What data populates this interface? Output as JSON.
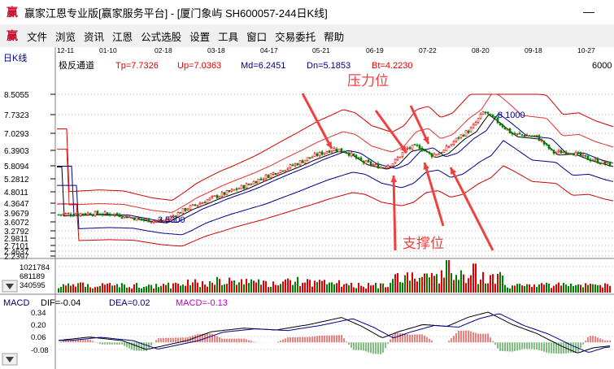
{
  "window": {
    "title": "赢家江恩专业版[赢家服务平台] - [厦门象屿  SH600057-244日K线]",
    "icon": "yingjia-logo-icon"
  },
  "menu": {
    "items": [
      "文件",
      "浏览",
      "资讯",
      "江恩",
      "公式选股",
      "设置",
      "工具",
      "窗口",
      "交易委托",
      "帮助"
    ]
  },
  "chart": {
    "period_label": "日K线",
    "dates": [
      "12-11",
      "01-10",
      "02-18",
      "03-18",
      "04-17",
      "05-21",
      "06-19",
      "07-22",
      "08-20",
      "09-18",
      "10-27"
    ],
    "indicator": {
      "name": "极反通道",
      "values": [
        "Tp=7.7326",
        "Up=7.0363",
        "Md=6.2451",
        "Dn=5.1853",
        "Bt=4.2230"
      ]
    },
    "right_edge_label": "6000",
    "price_ticks": [
      "8.5055",
      "7.7323",
      "7.0293",
      "6.3903",
      "5.8094",
      "5.2812",
      "4.8011",
      "4.3647",
      "3.9679",
      "3.6072",
      "3.2792",
      "2.9811",
      "2.7101",
      "2.4637",
      "2.2397"
    ],
    "high_label": "8.1000",
    "low_label": "3.5300",
    "annotation_resistance": "压力位",
    "annotation_support": "支撑位",
    "volume_ticks": [
      "1021784",
      "681189",
      "340595"
    ],
    "macd": {
      "name": "MACD",
      "dif": "DIF=-0.04",
      "dea": "DEA=0.02",
      "macd": "MACD=-0.13",
      "ticks": [
        "0.34",
        "0.20",
        "0.06",
        "-0.08"
      ]
    },
    "colors": {
      "up": "#e00000",
      "down": "#008000",
      "channel": "#d00000",
      "mid": "#00008b",
      "ma": "#000000",
      "arrow": "#f04040",
      "macd_label": "#c000c0"
    }
  }
}
